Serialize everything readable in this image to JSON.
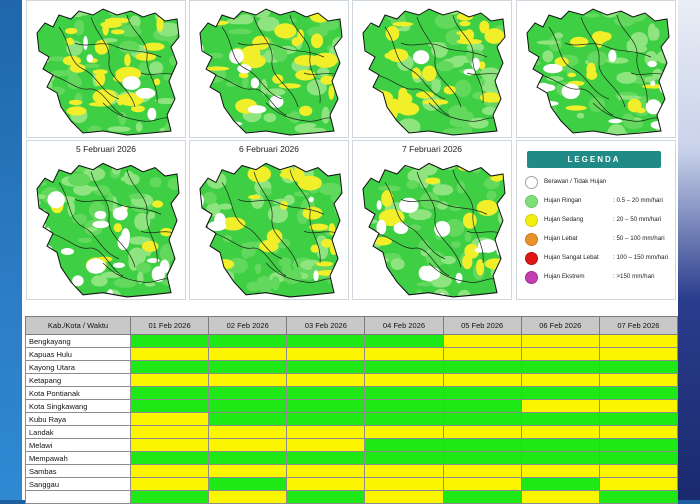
{
  "maps": [
    {
      "title": ""
    },
    {
      "title": ""
    },
    {
      "title": ""
    },
    {
      "title": ""
    },
    {
      "title": "5 Februari 2026"
    },
    {
      "title": "6 Februari 2026"
    },
    {
      "title": "7 Februari 2026"
    }
  ],
  "legend": {
    "title": "LEGENDA",
    "items": [
      {
        "label": "Berawan / Tidak Hujan",
        "range": "",
        "color": "#ffffff"
      },
      {
        "label": "Hujan Ringan",
        "range": ": 0.5 – 20 mm/hari",
        "color": "#7fe07a"
      },
      {
        "label": "Hujan Sedang",
        "range": ": 20 – 50 mm/hari",
        "color": "#f3ee10"
      },
      {
        "label": "Hujan Lebat",
        "range": ": 50 – 100 mm/hari",
        "color": "#e8922a"
      },
      {
        "label": "Hujan Sangat Lebat",
        "range": ": 100 – 150 mm/hari",
        "color": "#e01616"
      },
      {
        "label": "Hujan Ekstrem",
        "range": ": >150 mm/hari",
        "color": "#c23fb0"
      }
    ]
  },
  "table": {
    "header_label": "Kab./Kota / Waktu",
    "dates": [
      "01 Feb 2026",
      "02 Feb 2026",
      "03 Feb 2026",
      "04 Feb 2026",
      "05 Feb 2026",
      "06 Feb 2026",
      "07 Feb 2026"
    ],
    "status_colors": {
      "ringan": "#1ee816",
      "sedang": "#fbf500"
    },
    "rows": [
      {
        "name": "Bengkayang",
        "values": [
          "ringan",
          "ringan",
          "ringan",
          "ringan",
          "sedang",
          "sedang",
          "sedang"
        ]
      },
      {
        "name": "Kapuas Hulu",
        "values": [
          "sedang",
          "sedang",
          "sedang",
          "sedang",
          "sedang",
          "sedang",
          "sedang"
        ]
      },
      {
        "name": "Kayong Utara",
        "values": [
          "ringan",
          "ringan",
          "ringan",
          "ringan",
          "ringan",
          "ringan",
          "ringan"
        ]
      },
      {
        "name": "Ketapang",
        "values": [
          "sedang",
          "sedang",
          "sedang",
          "sedang",
          "sedang",
          "sedang",
          "sedang"
        ]
      },
      {
        "name": "Kota Pontianak",
        "values": [
          "ringan",
          "ringan",
          "ringan",
          "ringan",
          "ringan",
          "ringan",
          "ringan"
        ]
      },
      {
        "name": "Kota Singkawang",
        "values": [
          "ringan",
          "ringan",
          "ringan",
          "ringan",
          "ringan",
          "sedang",
          "sedang"
        ]
      },
      {
        "name": "Kubu Raya",
        "values": [
          "sedang",
          "ringan",
          "ringan",
          "ringan",
          "ringan",
          "ringan",
          "ringan"
        ]
      },
      {
        "name": "Landak",
        "values": [
          "sedang",
          "sedang",
          "sedang",
          "sedang",
          "sedang",
          "sedang",
          "sedang"
        ]
      },
      {
        "name": "Melawi",
        "values": [
          "sedang",
          "sedang",
          "sedang",
          "ringan",
          "ringan",
          "ringan",
          "ringan"
        ]
      },
      {
        "name": "Mempawah",
        "values": [
          "ringan",
          "ringan",
          "ringan",
          "ringan",
          "ringan",
          "ringan",
          "ringan"
        ]
      },
      {
        "name": "Sambas",
        "values": [
          "sedang",
          "sedang",
          "sedang",
          "sedang",
          "sedang",
          "sedang",
          "sedang"
        ]
      },
      {
        "name": "Sanggau",
        "values": [
          "sedang",
          "ringan",
          "sedang",
          "sedang",
          "sedang",
          "ringan",
          "sedang"
        ]
      },
      {
        "name": "",
        "values": [
          "ringan",
          "sedang",
          "ringan",
          "sedang",
          "ringan",
          "sedang",
          "ringan"
        ]
      }
    ]
  }
}
